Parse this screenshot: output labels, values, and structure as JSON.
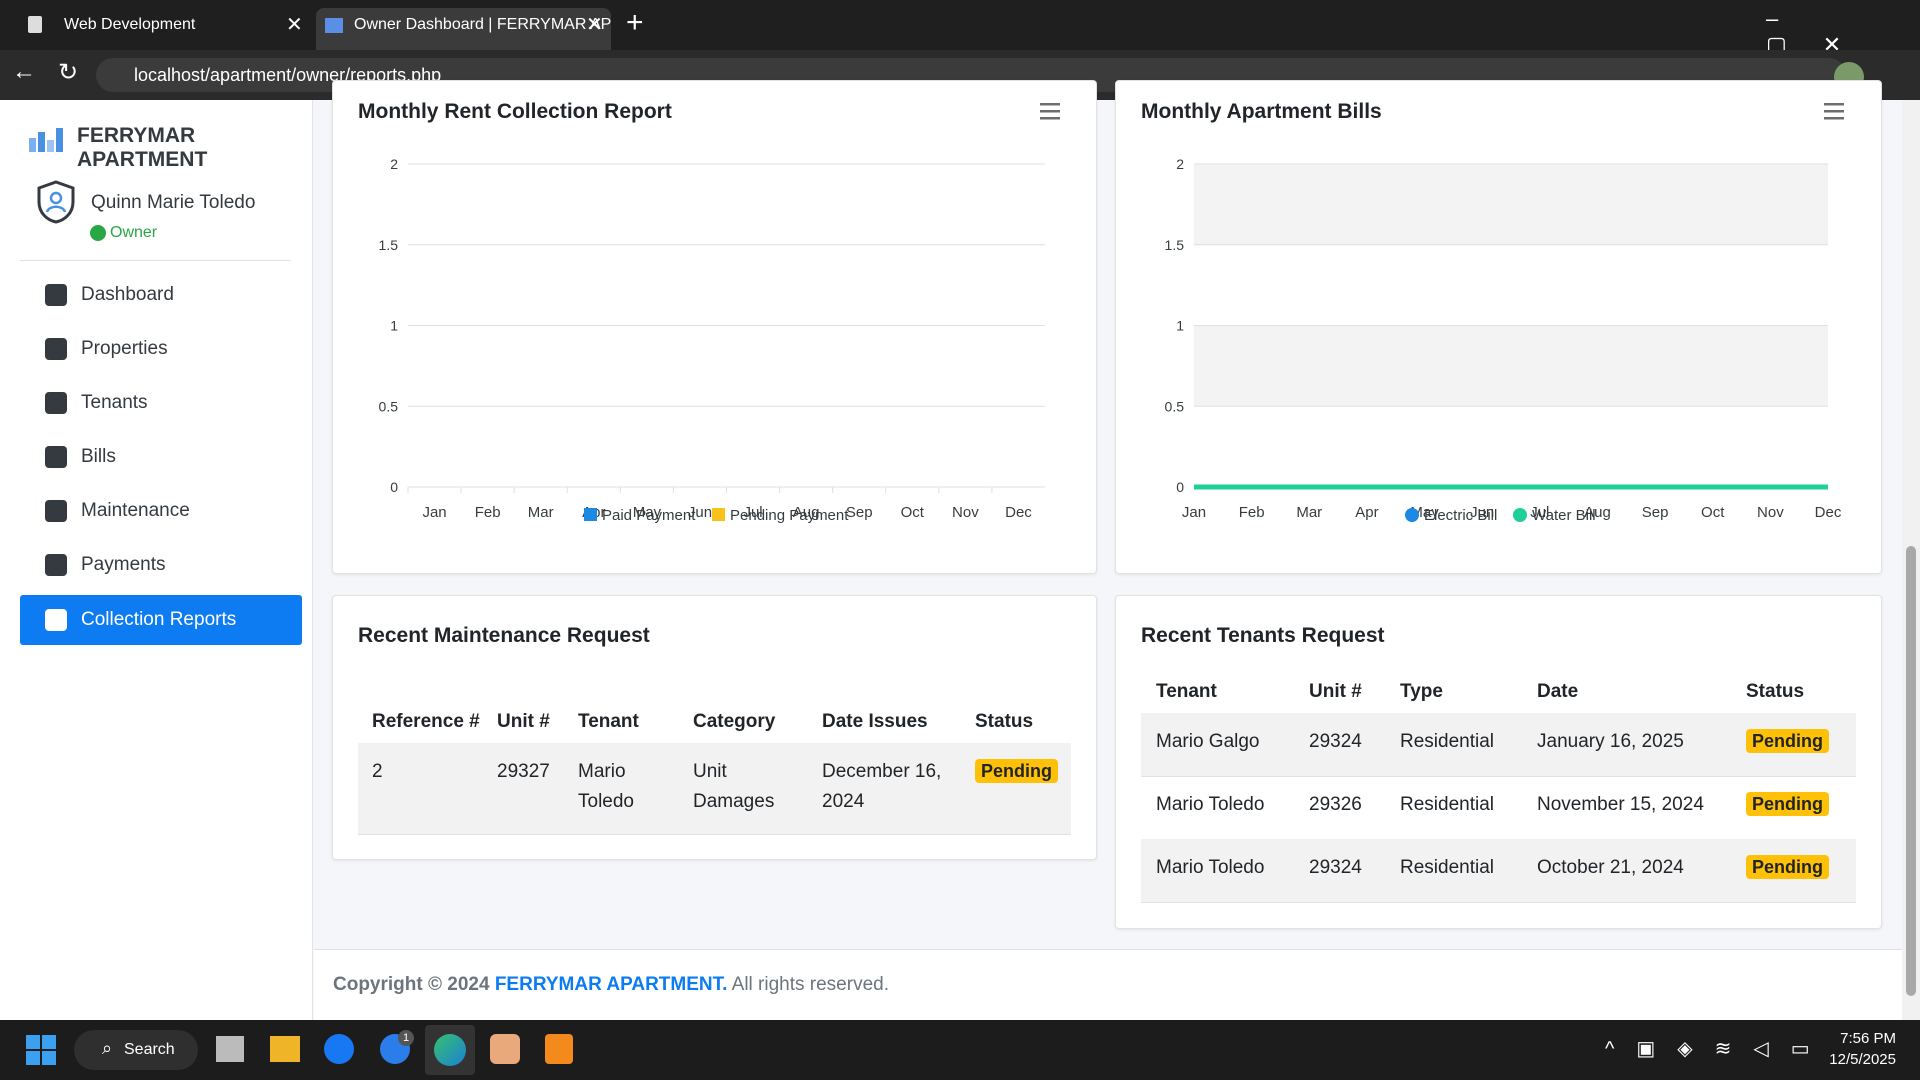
{
  "browser": {
    "tabs": [
      "Web Development",
      "Owner Dashboard | FERRYMAR AP"
    ],
    "url": "localhost/apartment/owner/reports.php"
  },
  "sidebar": {
    "brand": "FERRYMAR APARTMENT",
    "user": {
      "name": "Quinn Marie Toledo",
      "role": "Owner"
    },
    "nav": [
      "Dashboard",
      "Properties",
      "Tenants",
      "Bills",
      "Maintenance",
      "Payments",
      "Collection Reports"
    ]
  },
  "chart_data": [
    {
      "type": "bar",
      "title": "Monthly Rent Collection Report",
      "categories": [
        "Jan",
        "Feb",
        "Mar",
        "Apr",
        "May",
        "Jun",
        "Jul",
        "Aug",
        "Sep",
        "Oct",
        "Nov",
        "Dec"
      ],
      "series": [
        {
          "name": "Paid Payment",
          "color": "#1e88e5",
          "values": [
            0,
            0,
            0,
            0,
            0,
            0,
            0,
            0,
            0,
            0,
            0,
            0
          ]
        },
        {
          "name": "Pending Payment",
          "color": "#f9c21a",
          "values": [
            0,
            0,
            0,
            0,
            0,
            0,
            0,
            0,
            0,
            0,
            0,
            0
          ]
        }
      ],
      "ylim": [
        0,
        2
      ],
      "yticks": [
        0,
        0.5,
        1,
        1.5,
        2
      ],
      "grid": true
    },
    {
      "type": "line",
      "title": "Monthly Apartment Bills",
      "categories": [
        "Jan",
        "Feb",
        "Mar",
        "Apr",
        "May",
        "Jun",
        "Jul",
        "Aug",
        "Sep",
        "Oct",
        "Nov",
        "Dec"
      ],
      "series": [
        {
          "name": "Electric Bill",
          "color": "#1e88e5",
          "values": [
            0,
            0,
            0,
            0,
            0,
            0,
            0,
            0,
            0,
            0,
            0,
            0
          ]
        },
        {
          "name": "Water Bill",
          "color": "#1fcf98",
          "values": [
            0,
            0,
            0,
            0,
            0,
            0,
            0,
            0,
            0,
            0,
            0,
            0
          ]
        }
      ],
      "ylim": [
        0,
        2
      ],
      "yticks": [
        0,
        0.5,
        1,
        1.5,
        2
      ],
      "grid": true
    }
  ],
  "maintenance": {
    "title": "Recent Maintenance Request",
    "header": [
      "Reference #",
      "Unit #",
      "Tenant",
      "Category",
      "Date Issues",
      "Status"
    ],
    "rows": [
      [
        "2",
        "29327",
        "Mario Toledo",
        "Unit Damages",
        "December 16, 2024",
        "Pending"
      ]
    ]
  },
  "tenants": {
    "title": "Recent Tenants Request",
    "header": [
      "Tenant",
      "Unit #",
      "Type",
      "Date",
      "Status"
    ],
    "rows": [
      [
        "Mario Galgo",
        "29324",
        "Residential",
        "January 16, 2025",
        "Pending"
      ],
      [
        "Mario Toledo",
        "29326",
        "Residential",
        "November 15, 2024",
        "Pending"
      ],
      [
        "Mario Toledo",
        "29324",
        "Residential",
        "October 21, 2024",
        "Pending"
      ]
    ]
  },
  "footer": {
    "copyright": "Copyright © 2024",
    "brand": "FERRYMAR APARTMENT.",
    "rights": "All rights reserved."
  },
  "taskbar": {
    "search": "Search",
    "badge": "1",
    "time": "7:56 PM",
    "date": "12/5/2025"
  }
}
